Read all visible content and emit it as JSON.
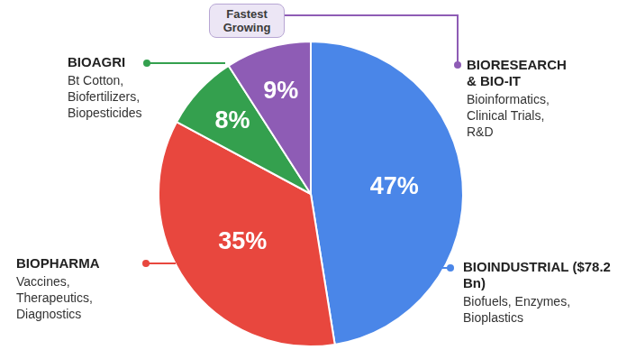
{
  "chart_data": {
    "type": "pie",
    "categories": [
      "BIOINDUSTRIAL ($78.2 Bn)",
      "BIOPHARMA",
      "BIOAGRI",
      "BIORESEARCH & BIO-IT"
    ],
    "values": [
      47,
      35,
      8,
      9
    ],
    "value_labels": [
      "47%",
      "35%",
      "8%",
      "9%"
    ],
    "colors": [
      "#4a86e8",
      "#e8473e",
      "#34a04e",
      "#8e5cb5"
    ],
    "data_labels": true,
    "descriptions": [
      [
        "Biofuels, Enzymes,",
        "Bioplastics"
      ],
      [
        "Vaccines,",
        "Therapeutics,",
        "Diagnostics"
      ],
      [
        "Bt Cotton,",
        "Biofertilizers,",
        "Biopesticides"
      ],
      [
        "Bioinformatics,",
        "Clinical Trials,",
        "R&D"
      ]
    ],
    "annotations": [
      {
        "text": "Fastest Growing",
        "category": "BIORESEARCH & BIO-IT"
      }
    ]
  }
}
